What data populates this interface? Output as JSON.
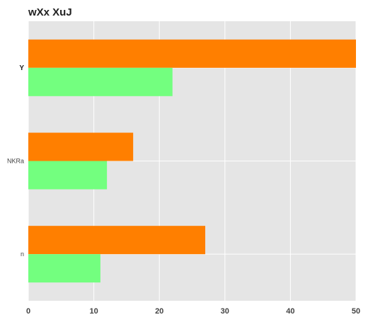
{
  "chart_data": {
    "type": "bar",
    "orientation": "horizontal",
    "title": "wXx XuJ",
    "categories": [
      "Y",
      "NKRa",
      "n"
    ],
    "series": [
      {
        "values": [
          50,
          16,
          27
        ],
        "color": "#ff7f00"
      },
      {
        "values": [
          22,
          12,
          11
        ],
        "color": "#73ff7f"
      }
    ],
    "xlim": [
      0,
      50
    ],
    "xticks": [
      0,
      10,
      20,
      30,
      40,
      50
    ],
    "grid": true,
    "plot_background": "#e5e5e5",
    "grid_color": "#ffffff"
  }
}
